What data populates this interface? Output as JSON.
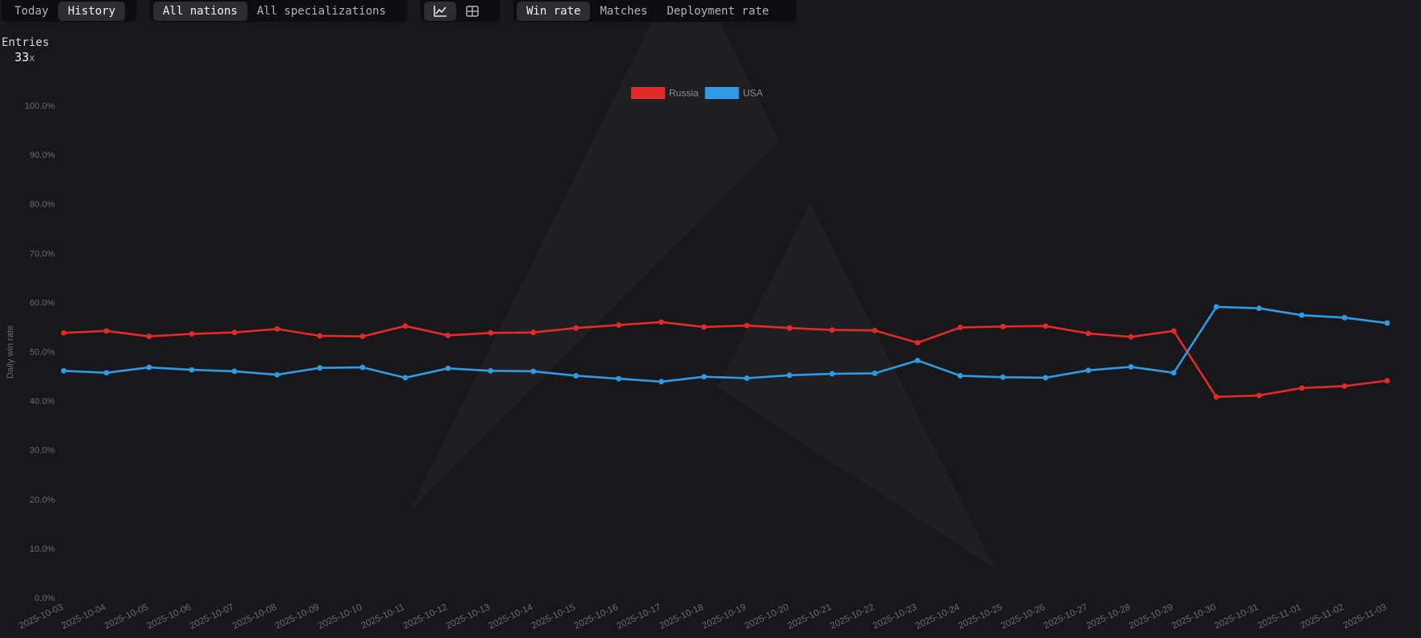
{
  "toolbar": {
    "period": {
      "today": "Today",
      "history": "History",
      "active": "history"
    },
    "filters": {
      "nations": "All nations",
      "specializations": "All specializations",
      "active": "nations"
    },
    "view": {
      "chart_icon": "line-chart-icon",
      "table_icon": "table-icon",
      "active": "chart"
    },
    "metric": {
      "win_rate": "Win rate",
      "matches": "Matches",
      "deployment_rate": "Deployment rate",
      "active": "win_rate"
    }
  },
  "entries": {
    "label": "Entries",
    "count": "33",
    "suffix": "x"
  },
  "colors": {
    "russia": "#e32a2a",
    "usa": "#2f9be6",
    "background": "#18181b"
  },
  "chart_data": {
    "type": "line",
    "title": "",
    "ylabel": "Daily win rate",
    "xlabel": "",
    "ylim": [
      0,
      100
    ],
    "yticks": [
      "0.0%",
      "10.0%",
      "20.0%",
      "30.0%",
      "40.0%",
      "50.0%",
      "60.0%",
      "70.0%",
      "80.0%",
      "90.0%",
      "100.0%"
    ],
    "legend_position": "top-center",
    "grid": false,
    "x": [
      "2025-10-03",
      "2025-10-04",
      "2025-10-05",
      "2025-10-06",
      "2025-10-07",
      "2025-10-08",
      "2025-10-09",
      "2025-10-10",
      "2025-10-11",
      "2025-10-12",
      "2025-10-13",
      "2025-10-14",
      "2025-10-15",
      "2025-10-16",
      "2025-10-17",
      "2025-10-18",
      "2025-10-19",
      "2025-10-20",
      "2025-10-21",
      "2025-10-22",
      "2025-10-23",
      "2025-10-24",
      "2025-10-25",
      "2025-10-26",
      "2025-10-27",
      "2025-10-28",
      "2025-10-29",
      "2025-10-30",
      "2025-10-31",
      "2025-11-01",
      "2025-11-02",
      "2025-11-03"
    ],
    "series": [
      {
        "name": "Russia",
        "color": "#e32a2a",
        "values": [
          53.8,
          54.2,
          53.1,
          53.6,
          53.9,
          54.6,
          53.2,
          53.1,
          55.2,
          53.3,
          53.8,
          53.9,
          54.8,
          55.4,
          56.0,
          55.0,
          55.3,
          54.8,
          54.4,
          54.3,
          51.8,
          54.9,
          55.1,
          55.2,
          53.7,
          53.0,
          54.2,
          40.8,
          41.1,
          42.6,
          43.0,
          44.1
        ]
      },
      {
        "name": "USA",
        "color": "#2f9be6",
        "values": [
          46.1,
          45.7,
          46.8,
          46.3,
          46.0,
          45.3,
          46.7,
          46.8,
          44.7,
          46.6,
          46.1,
          46.0,
          45.1,
          44.5,
          43.9,
          44.9,
          44.6,
          45.2,
          45.5,
          45.6,
          48.2,
          45.1,
          44.8,
          44.7,
          46.2,
          46.9,
          45.7,
          59.1,
          58.8,
          57.4,
          56.9,
          55.8
        ]
      }
    ]
  }
}
